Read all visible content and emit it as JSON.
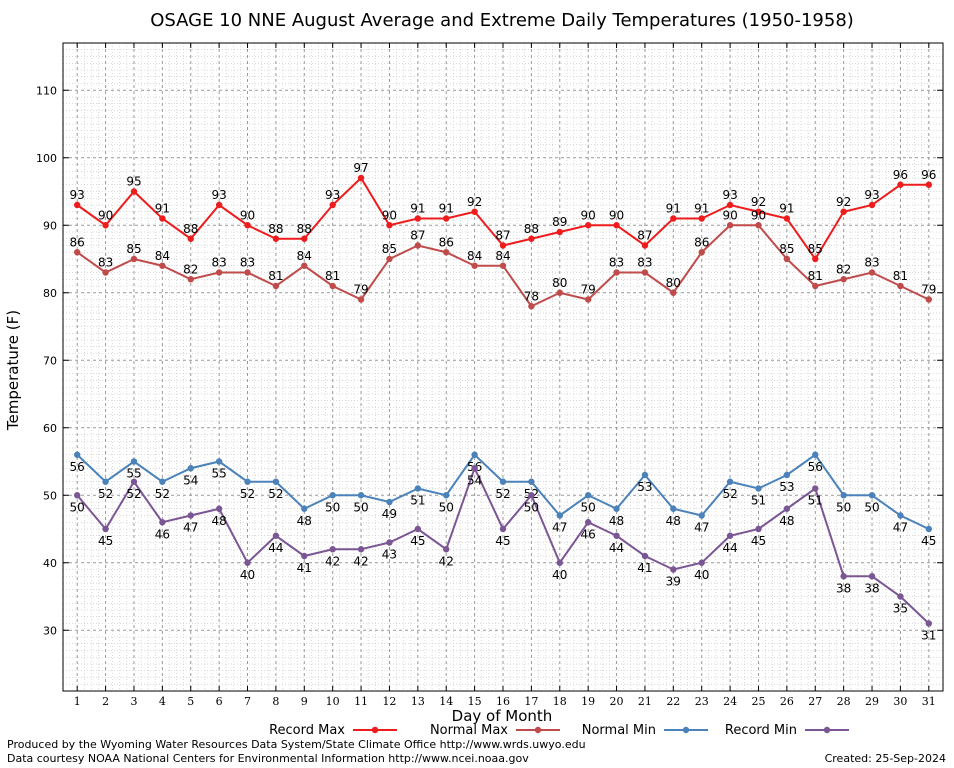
{
  "chart_data": {
    "type": "line",
    "title": "OSAGE 10 NNE August Average and Extreme Daily Temperatures (1950-1958)",
    "xlabel": "Day of Month",
    "ylabel": "Temperature (F)",
    "x": [
      1,
      2,
      3,
      4,
      5,
      6,
      7,
      8,
      9,
      10,
      11,
      12,
      13,
      14,
      15,
      16,
      17,
      18,
      19,
      20,
      21,
      22,
      23,
      24,
      25,
      26,
      27,
      28,
      29,
      30,
      31
    ],
    "xlim": [
      0.5,
      31.5
    ],
    "ylim": [
      21,
      117
    ],
    "yticks": [
      30,
      40,
      50,
      60,
      70,
      80,
      90,
      100,
      110
    ],
    "grid": true,
    "legend_position": "bottom",
    "series": [
      {
        "name": "Record Max",
        "color": "#ee1c1c",
        "values": [
          93,
          90,
          95,
          91,
          88,
          93,
          90,
          88,
          88,
          93,
          97,
          90,
          91,
          91,
          92,
          87,
          88,
          89,
          90,
          90,
          87,
          91,
          91,
          93,
          92,
          91,
          85,
          92,
          93,
          96,
          96
        ]
      },
      {
        "name": "Normal Max",
        "color": "#c04b4b",
        "values": [
          86,
          83,
          85,
          84,
          82,
          83,
          83,
          81,
          84,
          81,
          79,
          85,
          87,
          86,
          84,
          84,
          78,
          80,
          79,
          83,
          83,
          80,
          86,
          90,
          90,
          85,
          81,
          82,
          83,
          81,
          79
        ]
      },
      {
        "name": "Normal Min",
        "color": "#4a82b9",
        "values": [
          56,
          52,
          55,
          52,
          54,
          55,
          52,
          52,
          48,
          50,
          50,
          49,
          51,
          50,
          56,
          52,
          52,
          47,
          50,
          48,
          53,
          48,
          47,
          52,
          51,
          53,
          56,
          50,
          50,
          47,
          45
        ]
      },
      {
        "name": "Record Min",
        "color": "#7b5694",
        "values": [
          50,
          45,
          52,
          46,
          47,
          48,
          40,
          44,
          41,
          42,
          42,
          43,
          45,
          42,
          54,
          45,
          50,
          40,
          46,
          44,
          41,
          39,
          40,
          44,
          45,
          48,
          51,
          38,
          38,
          35,
          31
        ]
      }
    ]
  },
  "footer": {
    "produced_by": "Produced by the Wyoming Water Resources Data System/State Climate Office http://www.wrds.uwyo.edu",
    "data_courtesy": "Data courtesy NOAA National Centers for Environmental Information http://www.ncei.noaa.gov",
    "created": "Created:  25-Sep-2024"
  }
}
